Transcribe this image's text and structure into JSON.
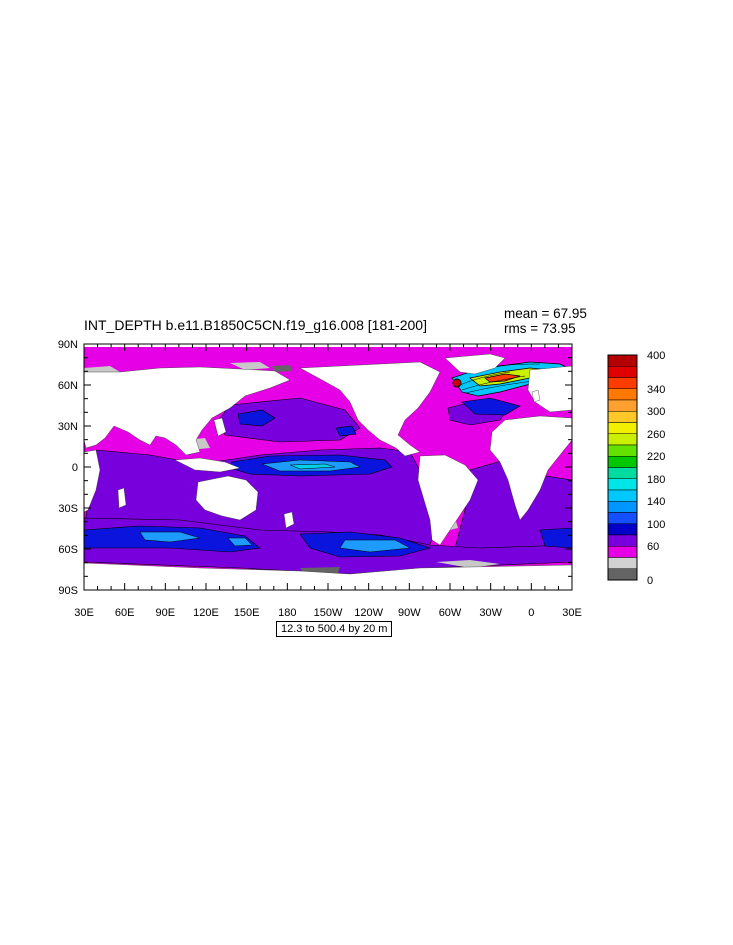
{
  "title": "INT_DEPTH b.e11.B1850C5CN.f19_g16.008 [181-200]",
  "stats": {
    "mean": "mean = 67.95",
    "rms": "rms = 73.95"
  },
  "lat_labels": [
    "90N",
    "60N",
    "30N",
    "0",
    "30S",
    "60S",
    "90S"
  ],
  "lon_labels": [
    "30E",
    "60E",
    "90E",
    "120E",
    "150E",
    "180",
    "150W",
    "120W",
    "90W",
    "60W",
    "30W",
    "0",
    "30E"
  ],
  "footer": "12.3 to 500.4 by 20 m",
  "colorbar": {
    "labels": [
      "400",
      "340",
      "300",
      "260",
      "220",
      "180",
      "140",
      "100",
      "60",
      "0"
    ],
    "colors": [
      "#b40000",
      "#e10000",
      "#ff3c00",
      "#ff7800",
      "#ffa030",
      "#ffc828",
      "#f0f000",
      "#c8f000",
      "#64e100",
      "#00c800",
      "#00dca0",
      "#00e6e6",
      "#00c8ff",
      "#0096ff",
      "#1450ff",
      "#0000c8",
      "#7800dc",
      "#e600e6",
      "#d2d2d2",
      "#646464"
    ]
  },
  "colors": {
    "land": "#ffffff",
    "ice_grey": "#c8c8c8",
    "dark_grey": "#646464",
    "magenta": "#e600e6",
    "purple": "#7800dc",
    "blue": "#0a14dc",
    "light_blue": "#1e9bff",
    "cyan": "#00d2e6",
    "hotspot_red": "#cc0000"
  }
}
